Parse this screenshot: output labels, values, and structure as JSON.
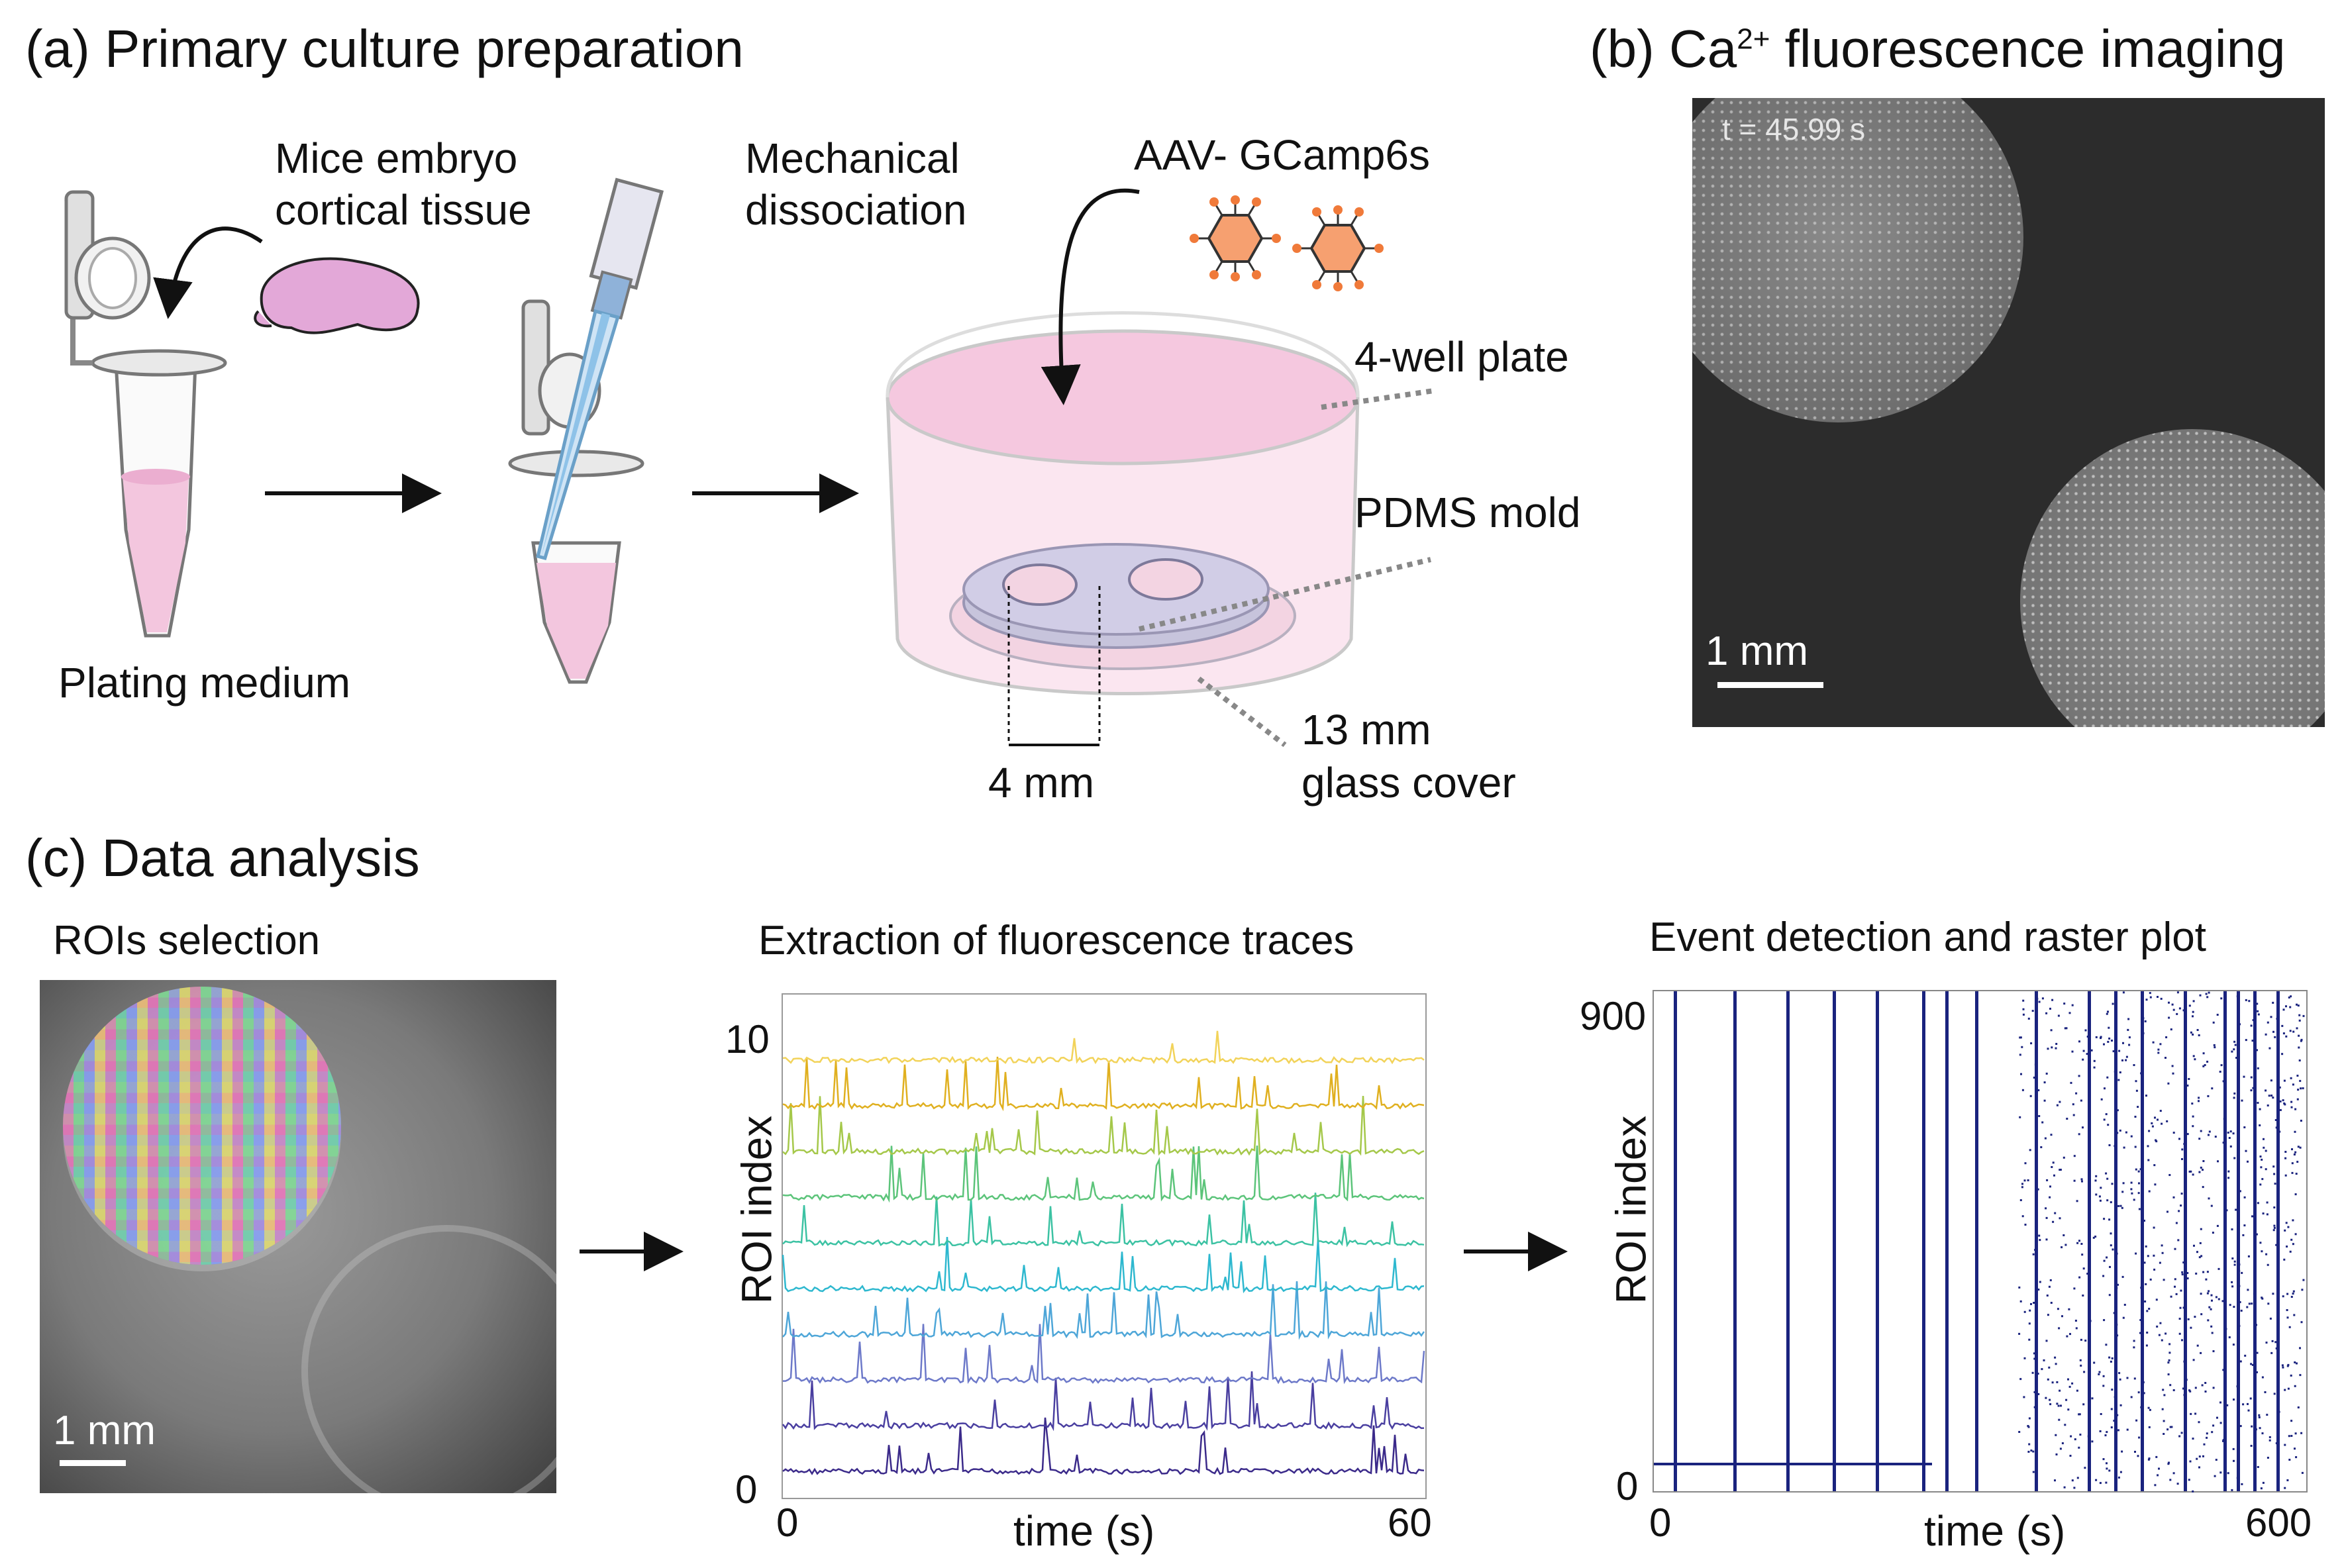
{
  "panel_a": {
    "title": "(a) Primary culture preparation",
    "labels": {
      "tissue": [
        "Mice embryo",
        "cortical tissue"
      ],
      "dissociation": [
        "Mechanical",
        "dissociation"
      ],
      "virus": "AAV- GCamp6s",
      "plate": "4-well plate",
      "mold": "PDMS mold",
      "cover": [
        "13 mm",
        "glass cover"
      ],
      "well_size": "4 mm",
      "medium": "Plating medium"
    }
  },
  "panel_b": {
    "title_prefix": "(b) Ca",
    "title_sup": "2+",
    "title_suffix": " fluorescence imaging",
    "timestamp": "t = 45.99 s",
    "scalebar": "1 mm"
  },
  "panel_c": {
    "title": "(c) Data analysis",
    "rois": {
      "title": "ROIs selection",
      "scalebar": "1 mm"
    },
    "traces": {
      "title": "Extraction of fluorescence traces",
      "ylabel": "ROI index",
      "xlabel": "time (s)",
      "ytick_top": "10",
      "ytick_bottom": "0",
      "xtick_left": "0",
      "xtick_right": "60"
    },
    "raster": {
      "title": "Event detection and raster plot",
      "ylabel": "ROI index",
      "xlabel": "time (s)",
      "ytick_top": "900",
      "ytick_bottom": "0",
      "xtick_left": "0",
      "xtick_right": "600"
    }
  },
  "colors": {
    "brain": "#e3a8d8",
    "medium": "#f3c6de",
    "virus": "#f07a3a",
    "mold": "#c7c4dc",
    "raster": "#1a237e",
    "trace_palette": [
      "#3b2a8a",
      "#4a3fa0",
      "#6d79c9",
      "#4ea6d8",
      "#2eb8cf",
      "#3cc2a3",
      "#5cc47a",
      "#a5c84a",
      "#e0b020",
      "#f2d35a"
    ]
  }
}
